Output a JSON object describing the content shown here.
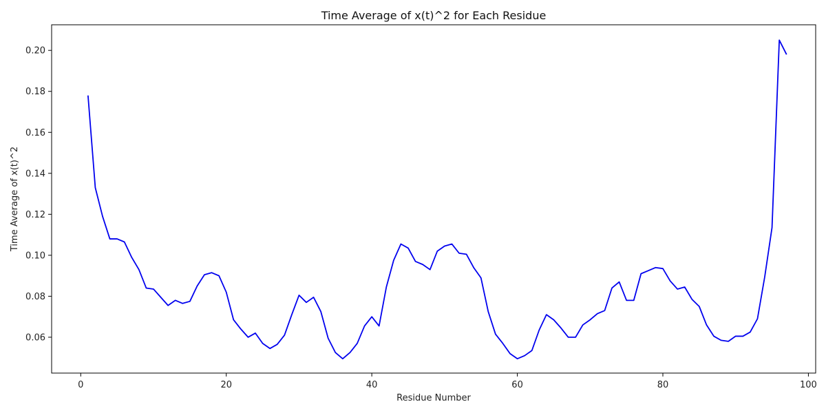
{
  "chart_data": {
    "type": "line",
    "title": "Time Average of x(t)^2 for Each Residue",
    "xlabel": "Residue Number",
    "ylabel": "Time Average of x(t)^2",
    "xlim": [
      -4,
      101
    ],
    "ylim": [
      0.0425,
      0.2125
    ],
    "xticks": [
      0,
      20,
      40,
      60,
      80,
      100
    ],
    "yticks": [
      0.06,
      0.08,
      0.1,
      0.12,
      0.14,
      0.16,
      0.18,
      0.2
    ],
    "ytick_labels": [
      "0.06",
      "0.08",
      "0.10",
      "0.12",
      "0.14",
      "0.16",
      "0.18",
      "0.20"
    ],
    "grid": false,
    "line_color": "#0000ee",
    "series": [
      {
        "x": [
          1,
          2,
          3,
          4,
          5,
          6,
          7,
          8,
          9,
          10,
          11,
          12,
          13,
          14,
          15,
          16,
          17,
          18,
          19,
          20,
          21,
          22,
          23,
          24,
          25,
          26,
          27,
          28,
          29,
          30,
          31,
          32,
          33,
          34,
          35,
          36,
          37,
          38,
          39,
          40,
          41,
          42,
          43,
          44,
          45,
          46,
          47,
          48,
          49,
          50,
          51,
          52,
          53,
          54,
          55,
          56,
          57,
          58,
          59,
          60,
          61,
          62,
          63,
          64,
          65,
          66,
          67,
          68,
          69,
          70,
          71,
          72,
          73,
          74,
          75,
          76,
          77,
          78,
          79,
          80,
          81,
          82,
          83,
          84,
          85,
          86,
          87,
          88,
          89,
          90,
          91,
          92,
          93,
          94,
          95,
          96,
          97
        ],
        "values": [
          0.178,
          0.133,
          0.119,
          0.108,
          0.108,
          0.1065,
          0.099,
          0.093,
          0.084,
          0.0835,
          0.0795,
          0.0755,
          0.078,
          0.0765,
          0.0775,
          0.085,
          0.0905,
          0.0915,
          0.09,
          0.082,
          0.0685,
          0.064,
          0.06,
          0.062,
          0.057,
          0.0545,
          0.0565,
          0.061,
          0.071,
          0.0805,
          0.077,
          0.0795,
          0.0725,
          0.0595,
          0.0525,
          0.0495,
          0.0525,
          0.057,
          0.0655,
          0.07,
          0.0655,
          0.0845,
          0.0975,
          0.1055,
          0.1035,
          0.097,
          0.0955,
          0.093,
          0.102,
          0.1045,
          0.1055,
          0.101,
          0.1005,
          0.094,
          0.089,
          0.0725,
          0.0615,
          0.057,
          0.052,
          0.0495,
          0.051,
          0.0535,
          0.0635,
          0.071,
          0.0685,
          0.0645,
          0.06,
          0.06,
          0.066,
          0.0685,
          0.0715,
          0.073,
          0.084,
          0.087,
          0.078,
          0.078,
          0.091,
          0.0925,
          0.094,
          0.0935,
          0.0875,
          0.0835,
          0.0845,
          0.0785,
          0.075,
          0.066,
          0.0605,
          0.0585,
          0.058,
          0.0605,
          0.0605,
          0.0625,
          0.069,
          0.0895,
          0.1135,
          0.205,
          0.198
        ]
      }
    ]
  }
}
